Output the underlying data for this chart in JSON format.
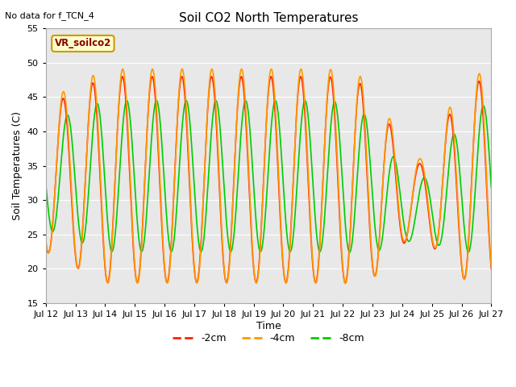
{
  "title": "Soil CO2 North Temperatures",
  "note": "No data for f_TCN_4",
  "ylabel": "Soil Temperatures (C)",
  "xlabel": "Time",
  "ylim": [
    15,
    55
  ],
  "yticks": [
    15,
    20,
    25,
    30,
    35,
    40,
    45,
    50,
    55
  ],
  "bg_color": "#e8e8e8",
  "fig_color": "#ffffff",
  "legend_box_label": "VR_soilco2",
  "legend_box_color": "#ffffcc",
  "legend_box_edge": "#cc9900",
  "series": [
    {
      "label": "-2cm",
      "color": "#ff2200",
      "lw": 1.2
    },
    {
      "label": "-4cm",
      "color": "#ff9900",
      "lw": 1.2
    },
    {
      "label": "-8cm",
      "color": "#00cc00",
      "lw": 1.2
    }
  ],
  "x_tick_labels": [
    "Jul 12",
    "Jul 13",
    "Jul 14",
    "Jul 15",
    "Jul 16",
    "Jul 17",
    "Jul 18",
    "Jul 19",
    "Jul 20",
    "Jul 21",
    "Jul 22",
    "Jul 23",
    "Jul 24",
    "Jul 25",
    "Jul 26",
    "Jul 27"
  ],
  "x_tick_positions": [
    0,
    24,
    48,
    72,
    96,
    120,
    144,
    168,
    192,
    216,
    240,
    264,
    288,
    312,
    336,
    360
  ],
  "figsize": [
    6.4,
    4.8
  ],
  "dpi": 100
}
